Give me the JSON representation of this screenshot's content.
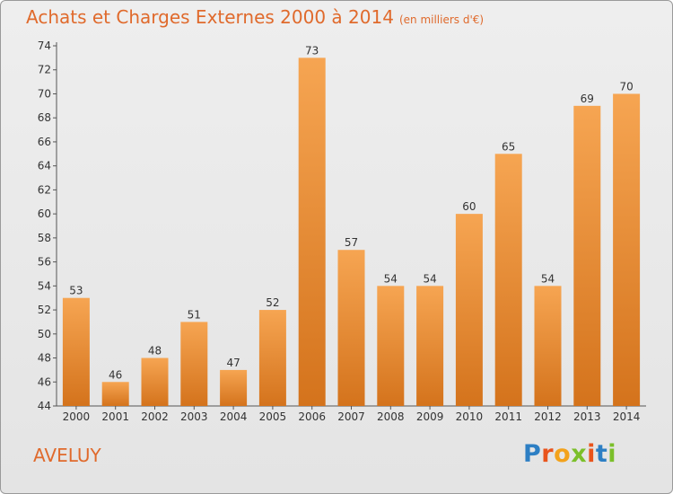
{
  "header": {
    "title": "Achats et Charges Externes 2000 à 2014",
    "unit": "(en milliers d'€)"
  },
  "footer": {
    "city": "AVELUY",
    "logo_letters": [
      "P",
      "r",
      "o",
      "x",
      "i",
      "t",
      "i"
    ],
    "logo_colors": [
      "#2d7fc4",
      "#e9541c",
      "#f3a21b",
      "#7bbf2a",
      "#e9541c",
      "#2d7fc4",
      "#7bbf2a"
    ]
  },
  "colors": {
    "bar_top": "#f6a552",
    "bar_bottom": "#d4731c",
    "accent": "#e06a2c"
  },
  "chart_data": {
    "type": "bar",
    "title": "Achats et Charges Externes 2000 à 2014",
    "subtitle": "(en milliers d'€)",
    "categories": [
      "2000",
      "2001",
      "2002",
      "2003",
      "2004",
      "2005",
      "2006",
      "2007",
      "2008",
      "2009",
      "2010",
      "2011",
      "2012",
      "2013",
      "2014"
    ],
    "values": [
      53,
      46,
      48,
      51,
      47,
      52,
      73,
      57,
      54,
      54,
      60,
      65,
      54,
      69,
      70
    ],
    "ylim": [
      44,
      74
    ],
    "yticks": [
      44,
      46,
      48,
      50,
      52,
      54,
      56,
      58,
      60,
      62,
      64,
      66,
      68,
      70,
      72,
      74
    ],
    "grid": false,
    "xlabel": "",
    "ylabel": ""
  }
}
